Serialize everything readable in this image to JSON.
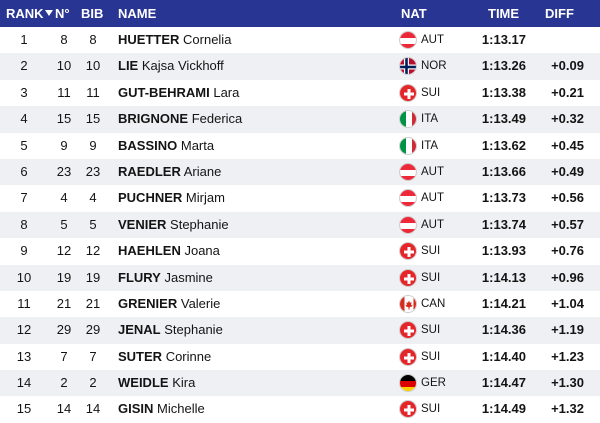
{
  "header": {
    "rank": "RANK",
    "no": "N°",
    "bib": "BIB",
    "name": "NAME",
    "nat": "NAT",
    "time": "TIME",
    "diff": "DIFF"
  },
  "rows": [
    {
      "rank": "1",
      "no": "8",
      "bib": "8",
      "surname": "HUETTER",
      "first": "Cornelia",
      "nat": "AUT",
      "flag": "austria-flag-icon",
      "time": "1:13.17",
      "diff": ""
    },
    {
      "rank": "2",
      "no": "10",
      "bib": "10",
      "surname": "LIE",
      "first": "Kajsa Vickhoff",
      "nat": "NOR",
      "flag": "norway-flag-icon",
      "time": "1:13.26",
      "diff": "+0.09"
    },
    {
      "rank": "3",
      "no": "11",
      "bib": "11",
      "surname": "GUT-BEHRAMI",
      "first": "Lara",
      "nat": "SUI",
      "flag": "switzerland-flag-icon",
      "time": "1:13.38",
      "diff": "+0.21"
    },
    {
      "rank": "4",
      "no": "15",
      "bib": "15",
      "surname": "BRIGNONE",
      "first": "Federica",
      "nat": "ITA",
      "flag": "italy-flag-icon",
      "time": "1:13.49",
      "diff": "+0.32"
    },
    {
      "rank": "5",
      "no": "9",
      "bib": "9",
      "surname": "BASSINO",
      "first": "Marta",
      "nat": "ITA",
      "flag": "italy-flag-icon",
      "time": "1:13.62",
      "diff": "+0.45"
    },
    {
      "rank": "6",
      "no": "23",
      "bib": "23",
      "surname": "RAEDLER",
      "first": "Ariane",
      "nat": "AUT",
      "flag": "austria-flag-icon",
      "time": "1:13.66",
      "diff": "+0.49"
    },
    {
      "rank": "7",
      "no": "4",
      "bib": "4",
      "surname": "PUCHNER",
      "first": "Mirjam",
      "nat": "AUT",
      "flag": "austria-flag-icon",
      "time": "1:13.73",
      "diff": "+0.56"
    },
    {
      "rank": "8",
      "no": "5",
      "bib": "5",
      "surname": "VENIER",
      "first": "Stephanie",
      "nat": "AUT",
      "flag": "austria-flag-icon",
      "time": "1:13.74",
      "diff": "+0.57"
    },
    {
      "rank": "9",
      "no": "12",
      "bib": "12",
      "surname": "HAEHLEN",
      "first": "Joana",
      "nat": "SUI",
      "flag": "switzerland-flag-icon",
      "time": "1:13.93",
      "diff": "+0.76"
    },
    {
      "rank": "10",
      "no": "19",
      "bib": "19",
      "surname": "FLURY",
      "first": "Jasmine",
      "nat": "SUI",
      "flag": "switzerland-flag-icon",
      "time": "1:14.13",
      "diff": "+0.96"
    },
    {
      "rank": "11",
      "no": "21",
      "bib": "21",
      "surname": "GRENIER",
      "first": "Valerie",
      "nat": "CAN",
      "flag": "canada-flag-icon",
      "time": "1:14.21",
      "diff": "+1.04"
    },
    {
      "rank": "12",
      "no": "29",
      "bib": "29",
      "surname": "JENAL",
      "first": "Stephanie",
      "nat": "SUI",
      "flag": "switzerland-flag-icon",
      "time": "1:14.36",
      "diff": "+1.19"
    },
    {
      "rank": "13",
      "no": "7",
      "bib": "7",
      "surname": "SUTER",
      "first": "Corinne",
      "nat": "SUI",
      "flag": "switzerland-flag-icon",
      "time": "1:14.40",
      "diff": "+1.23"
    },
    {
      "rank": "14",
      "no": "2",
      "bib": "2",
      "surname": "WEIDLE",
      "first": "Kira",
      "nat": "GER",
      "flag": "germany-flag-icon",
      "time": "1:14.47",
      "diff": "+1.30"
    },
    {
      "rank": "15",
      "no": "14",
      "bib": "14",
      "surname": "GISIN",
      "first": "Michelle",
      "nat": "SUI",
      "flag": "switzerland-flag-icon",
      "time": "1:14.49",
      "diff": "+1.32"
    }
  ],
  "colors": {
    "header_bg": "#283592",
    "header_text": "#ffffff",
    "row_alt": "#eef0f3"
  }
}
